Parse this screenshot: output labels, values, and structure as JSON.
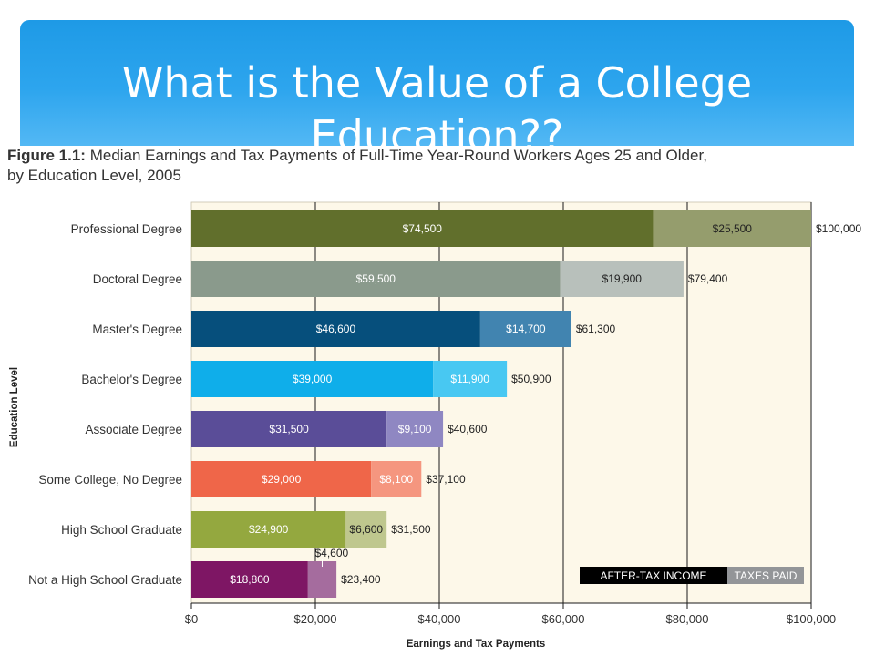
{
  "slide": {
    "title_line1": "What is the Value of a College",
    "title_line2": "Education??"
  },
  "figure": {
    "label": "Figure 1.1:",
    "title": "Median Earnings and Tax Payments of Full-Time Year-Round Workers Ages 25 and Older,",
    "title_line2": "by Education Level, 2005"
  },
  "chart_data": {
    "type": "bar",
    "orientation": "horizontal",
    "stacked": true,
    "categories": [
      "Professional Degree",
      "Doctoral Degree",
      "Master's Degree",
      "Bachelor's Degree",
      "Associate Degree",
      "Some College, No Degree",
      "High School Graduate",
      "Not a High School Graduate"
    ],
    "series": [
      {
        "name": "AFTER-TAX INCOME",
        "values": [
          74500,
          59500,
          46600,
          39000,
          31500,
          29000,
          24900,
          18800
        ]
      },
      {
        "name": "TAXES PAID",
        "values": [
          25500,
          19900,
          14700,
          11900,
          9100,
          8100,
          6600,
          4600
        ]
      }
    ],
    "segment_labels": [
      [
        "$74,500",
        "$59,500",
        "$46,600",
        "$39,000",
        "$31,500",
        "$29,000",
        "$24,900",
        "$18,800"
      ],
      [
        "$25,500",
        "$19,900",
        "$14,700",
        "$11,900",
        "$9,100",
        "$8,100",
        "$6,600",
        "$4,600"
      ]
    ],
    "totals": [
      100000,
      79400,
      61300,
      50900,
      40600,
      37100,
      31500,
      23400
    ],
    "total_labels": [
      "$100,000",
      "$79,400",
      "$61,300",
      "$50,900",
      "$40,600",
      "$37,100",
      "$31,500",
      "$23,400"
    ],
    "colors": {
      "income": [
        "#616f2c",
        "#8a9a8c",
        "#064f7c",
        "#0faeea",
        "#5a4d98",
        "#ef6649",
        "#94a83f",
        "#7e1664"
      ],
      "tax": [
        "#959d6d",
        "#b8c0bb",
        "#4184b0",
        "#48c8f2",
        "#8f87c2",
        "#f5967f",
        "#bfc78e",
        "#a56c9e"
      ],
      "plot_background": "#fdf8e9",
      "legend_income_bg": "#000000",
      "legend_tax_bg": "#939598"
    },
    "xlabel": "Earnings and Tax Payments",
    "ylabel": "Education Level",
    "xlim": [
      0,
      100000
    ],
    "xticks": [
      0,
      20000,
      40000,
      60000,
      80000,
      100000
    ],
    "xtick_labels": [
      "$0",
      "$20,000",
      "$40,000",
      "$60,000",
      "$80,000",
      "$100,000"
    ],
    "grid": true,
    "legend": {
      "position": "bottom-right",
      "items": [
        "AFTER-TAX INCOME",
        "TAXES PAID"
      ]
    }
  }
}
